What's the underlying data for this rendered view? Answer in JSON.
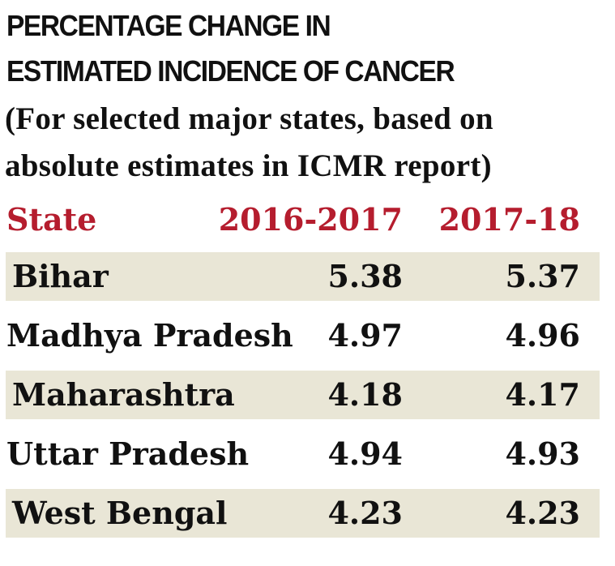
{
  "title": {
    "line1": "PERCENTAGE CHANGE IN",
    "line2": "ESTIMATED INCIDENCE OF CANCER"
  },
  "subtitle": {
    "line1": "(For selected major states, based on",
    "line2": "absolute estimates in ICMR report)"
  },
  "colors": {
    "header": "#b51d2e",
    "shaded_row": "#e9e6d6",
    "text": "#111111"
  },
  "chart_data": {
    "type": "table",
    "title": "PERCENTAGE CHANGE IN ESTIMATED INCIDENCE OF CANCER",
    "subtitle": "(For selected major states, based on absolute estimates in ICMR report)",
    "columns": [
      "State",
      "2016-2017",
      "2017-18"
    ],
    "rows": [
      {
        "state": "Bihar",
        "y2016_2017": "5.38",
        "y2017_18": "5.37"
      },
      {
        "state": "Madhya Pradesh",
        "y2016_2017": "4.97",
        "y2017_18": "4.96"
      },
      {
        "state": "Maharashtra",
        "y2016_2017": "4.18",
        "y2017_18": "4.17"
      },
      {
        "state": "Uttar Pradesh",
        "y2016_2017": "4.94",
        "y2017_18": "4.93"
      },
      {
        "state": "West Bengal",
        "y2016_2017": "4.23",
        "y2017_18": "4.23"
      }
    ]
  }
}
